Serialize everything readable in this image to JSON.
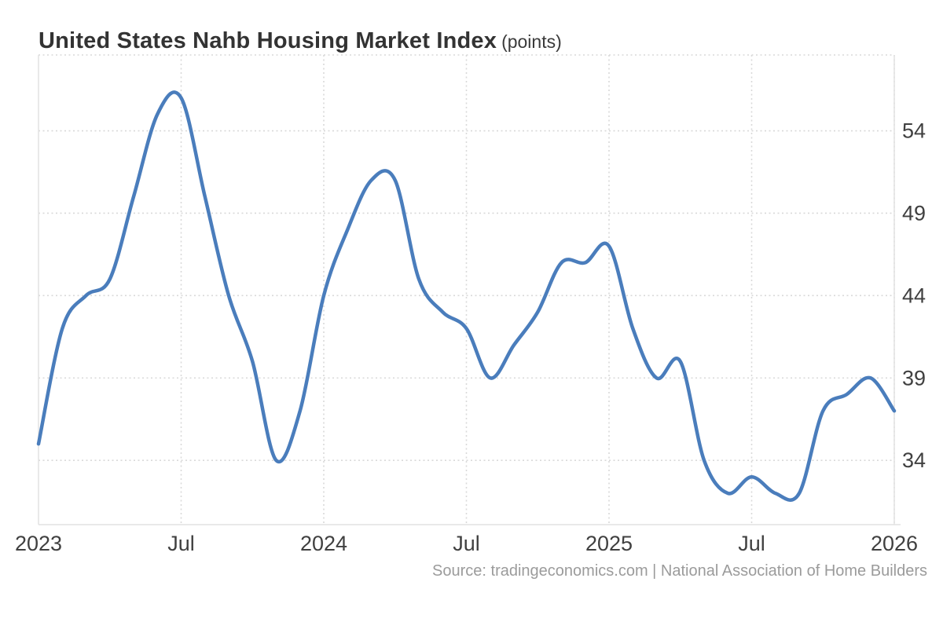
{
  "title": {
    "main": "United States Nahb Housing Market Index",
    "unit": "(points)"
  },
  "source": "Source: tradingeconomics.com | National Association of Home Builders",
  "colors": {
    "line": "#4a7dbc",
    "grid": "#d9d9d9",
    "plot_border": "#e2e2e2",
    "axis_text": "#404040",
    "title_text": "#333333",
    "source_text": "#9b9b9b",
    "background": "#ffffff"
  },
  "chart_data": {
    "type": "line",
    "title": "United States Nahb Housing Market Index",
    "unit": "points",
    "grid": true,
    "legend": false,
    "smooth": true,
    "x": [
      "2023-01",
      "2023-02",
      "2023-03",
      "2023-04",
      "2023-05",
      "2023-06",
      "2023-07",
      "2023-08",
      "2023-09",
      "2023-10",
      "2023-11",
      "2023-12",
      "2024-01",
      "2024-02",
      "2024-03",
      "2024-04",
      "2024-05",
      "2024-06",
      "2024-07",
      "2024-08",
      "2024-09",
      "2024-10",
      "2024-11",
      "2024-12",
      "2025-01",
      "2025-02",
      "2025-03",
      "2025-04",
      "2025-05",
      "2025-06",
      "2025-07",
      "2025-08",
      "2025-09",
      "2025-10",
      "2025-11",
      "2025-12",
      "2026-01"
    ],
    "values": [
      35,
      42,
      44,
      45,
      50,
      55,
      56,
      50,
      44,
      40,
      34,
      37,
      44,
      48,
      51,
      51,
      45,
      43,
      42,
      39,
      41,
      43,
      46,
      46,
      47,
      42,
      39,
      40,
      34,
      32,
      33,
      32,
      32,
      37,
      38,
      39,
      37
    ],
    "y_ticks": [
      34,
      39,
      44,
      49,
      54
    ],
    "x_ticks": [
      {
        "index": 0,
        "label": "2023"
      },
      {
        "index": 6,
        "label": "Jul"
      },
      {
        "index": 12,
        "label": "2024"
      },
      {
        "index": 18,
        "label": "Jul"
      },
      {
        "index": 24,
        "label": "2025"
      },
      {
        "index": 30,
        "label": "Jul"
      },
      {
        "index": 36,
        "label": "2026"
      }
    ],
    "ylim": [
      30.1,
      58.6
    ]
  }
}
